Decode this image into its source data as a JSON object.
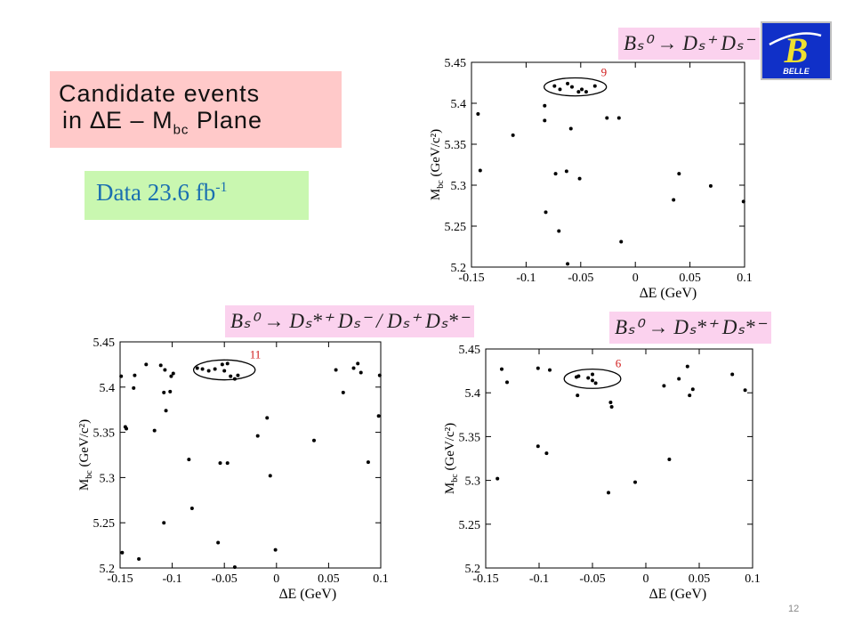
{
  "slide": {
    "title_line1": "Candidate  events",
    "title_line2_prefix": "in ∆E – M",
    "title_line2_sub": "bc",
    "title_line2_suffix": "  Plane",
    "data_label": "Data   23.6 fb",
    "data_label_sup": "-1",
    "logo_letter": "B",
    "logo_text": "BELLE",
    "page_number": "12"
  },
  "chart_data": [
    {
      "type": "scatter",
      "decay_label": "Bₛ⁰ → Dₛ⁺ Dₛ⁻",
      "signal_count": "9",
      "xlabel": "∆E (GeV)",
      "ylabel": "M_bc (GeV/c²)",
      "xlim": [
        -0.15,
        0.1
      ],
      "ylim": [
        5.2,
        5.45
      ],
      "xticks": [
        "-0.15",
        "-0.1",
        "-0.05",
        "0",
        "0.05",
        "0.1"
      ],
      "yticks": [
        "5.2",
        "5.25",
        "5.3",
        "5.35",
        "5.4",
        "5.45"
      ],
      "ellipse": {
        "cx": -0.055,
        "cy": 5.42,
        "rx": 0.0285,
        "ry": 0.011
      },
      "points": [
        [
          -0.144,
          5.387
        ],
        [
          -0.142,
          5.318
        ],
        [
          -0.112,
          5.361
        ],
        [
          -0.083,
          5.397
        ],
        [
          -0.083,
          5.379
        ],
        [
          -0.074,
          5.421
        ],
        [
          -0.069,
          5.417
        ],
        [
          -0.062,
          5.424
        ],
        [
          -0.058,
          5.42
        ],
        [
          -0.052,
          5.414
        ],
        [
          -0.049,
          5.417
        ],
        [
          -0.045,
          5.414
        ],
        [
          -0.037,
          5.421
        ],
        [
          -0.059,
          5.369
        ],
        [
          -0.026,
          5.382
        ],
        [
          -0.015,
          5.382
        ],
        [
          -0.073,
          5.314
        ],
        [
          -0.063,
          5.317
        ],
        [
          -0.051,
          5.308
        ],
        [
          -0.082,
          5.267
        ],
        [
          -0.07,
          5.244
        ],
        [
          -0.013,
          5.231
        ],
        [
          -0.062,
          5.204
        ],
        [
          0.035,
          5.282
        ],
        [
          0.04,
          5.314
        ],
        [
          0.069,
          5.299
        ],
        [
          0.099,
          5.28
        ]
      ]
    },
    {
      "type": "scatter",
      "decay_label": "Bₛ⁰ → Dₛ*⁺ Dₛ⁻ / Dₛ⁺ Dₛ*⁻",
      "signal_count": "11",
      "xlabel": "∆E (GeV)",
      "ylabel": "M_bc (GeV/c²)",
      "xlim": [
        -0.15,
        0.1
      ],
      "ylim": [
        5.2,
        5.45
      ],
      "xticks": [
        "-0.15",
        "-0.1",
        "-0.05",
        "0",
        "0.05",
        "0.1"
      ],
      "yticks": [
        "5.2",
        "5.25",
        "5.3",
        "5.35",
        "5.4",
        "5.45"
      ],
      "ellipse": {
        "cx": -0.05,
        "cy": 5.419,
        "rx": 0.0295,
        "ry": 0.011
      },
      "points": [
        [
          -0.149,
          5.412
        ],
        [
          -0.136,
          5.413
        ],
        [
          -0.137,
          5.399
        ],
        [
          -0.125,
          5.425
        ],
        [
          -0.111,
          5.424
        ],
        [
          -0.107,
          5.419
        ],
        [
          -0.101,
          5.412
        ],
        [
          -0.099,
          5.415
        ],
        [
          -0.108,
          5.394
        ],
        [
          -0.102,
          5.395
        ],
        [
          -0.106,
          5.374
        ],
        [
          -0.117,
          5.352
        ],
        [
          -0.145,
          5.356
        ],
        [
          -0.144,
          5.354
        ],
        [
          -0.076,
          5.421
        ],
        [
          -0.071,
          5.42
        ],
        [
          -0.065,
          5.418
        ],
        [
          -0.059,
          5.42
        ],
        [
          -0.052,
          5.425
        ],
        [
          -0.05,
          5.418
        ],
        [
          -0.047,
          5.426
        ],
        [
          -0.044,
          5.412
        ],
        [
          -0.037,
          5.413
        ],
        [
          -0.04,
          5.409
        ],
        [
          -0.084,
          5.32
        ],
        [
          -0.054,
          5.316
        ],
        [
          -0.047,
          5.316
        ],
        [
          -0.081,
          5.266
        ],
        [
          -0.108,
          5.25
        ],
        [
          -0.056,
          5.228
        ],
        [
          -0.148,
          5.217
        ],
        [
          -0.132,
          5.21
        ],
        [
          -0.04,
          5.201
        ],
        [
          -0.009,
          5.366
        ],
        [
          -0.018,
          5.346
        ],
        [
          -0.006,
          5.302
        ],
        [
          -0.001,
          5.22
        ],
        [
          0.036,
          5.341
        ],
        [
          0.057,
          5.419
        ],
        [
          0.064,
          5.394
        ],
        [
          0.074,
          5.421
        ],
        [
          0.078,
          5.426
        ],
        [
          0.081,
          5.416
        ],
        [
          0.088,
          5.317
        ],
        [
          0.098,
          5.368
        ],
        [
          0.099,
          5.413
        ]
      ]
    },
    {
      "type": "scatter",
      "decay_label": "Bₛ⁰ → Dₛ*⁺ Dₛ*⁻",
      "signal_count": "6",
      "xlabel": "∆E (GeV)",
      "ylabel": "M_bc (GeV/c²)",
      "xlim": [
        -0.15,
        0.1
      ],
      "ylim": [
        5.2,
        5.45
      ],
      "xticks": [
        "-0.15",
        "-0.1",
        "-0.05",
        "0",
        "0.05",
        "0.1"
      ],
      "yticks": [
        "5.2",
        "5.25",
        "5.3",
        "5.35",
        "5.4",
        "5.45"
      ],
      "ellipse": {
        "cx": -0.05,
        "cy": 5.416,
        "rx": 0.0265,
        "ry": 0.011
      },
      "points": [
        [
          -0.139,
          5.302
        ],
        [
          -0.135,
          5.427
        ],
        [
          -0.13,
          5.412
        ],
        [
          -0.101,
          5.428
        ],
        [
          -0.09,
          5.426
        ],
        [
          -0.101,
          5.339
        ],
        [
          -0.093,
          5.331
        ],
        [
          -0.065,
          5.418
        ],
        [
          -0.063,
          5.419
        ],
        [
          -0.054,
          5.417
        ],
        [
          -0.05,
          5.421
        ],
        [
          -0.05,
          5.414
        ],
        [
          -0.047,
          5.411
        ],
        [
          -0.064,
          5.397
        ],
        [
          -0.033,
          5.389
        ],
        [
          -0.032,
          5.384
        ],
        [
          -0.035,
          5.286
        ],
        [
          -0.01,
          5.298
        ],
        [
          0.017,
          5.408
        ],
        [
          0.022,
          5.324
        ],
        [
          0.031,
          5.416
        ],
        [
          0.039,
          5.43
        ],
        [
          0.041,
          5.397
        ],
        [
          0.044,
          5.404
        ],
        [
          0.081,
          5.421
        ],
        [
          0.093,
          5.403
        ]
      ]
    }
  ]
}
